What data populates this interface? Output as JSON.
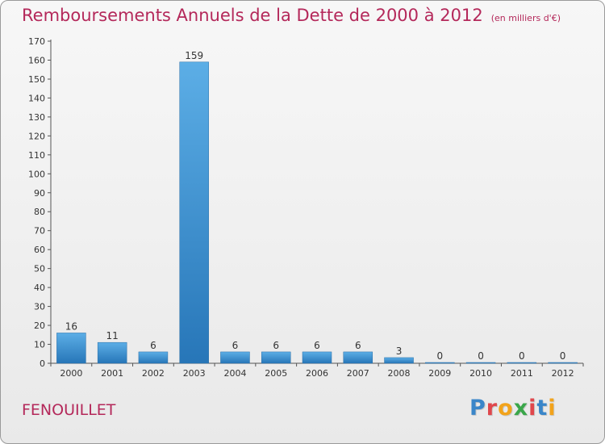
{
  "title": {
    "main": "Remboursements Annuels de la Dette de 2000 à 2012",
    "unit": "(en milliers d'€)"
  },
  "commune": "FENOUILLET",
  "logo": {
    "name": "Proxiti",
    "letters": [
      "P",
      "r",
      "o",
      "x",
      "i",
      "t",
      "i"
    ],
    "colors": [
      "#3a86c9",
      "#e0474c",
      "#f2a31b",
      "#3aa64a",
      "#e0474c",
      "#3a86c9",
      "#f2a31b"
    ]
  },
  "colors": {
    "bar_light": "#5caee6",
    "bar_dark": "#2776b8",
    "title": "#b4285a"
  },
  "chart_data": {
    "type": "bar",
    "title": "Remboursements Annuels de la Dette de 2000 à 2012",
    "subtitle": "(en milliers d'€)",
    "categories": [
      "2000",
      "2001",
      "2002",
      "2003",
      "2004",
      "2005",
      "2006",
      "2007",
      "2008",
      "2009",
      "2010",
      "2011",
      "2012"
    ],
    "values": [
      16,
      11,
      6,
      159,
      6,
      6,
      6,
      6,
      3,
      0,
      0,
      0,
      0
    ],
    "data_labels": [
      "16",
      "11",
      "6",
      "159",
      "6",
      "6",
      "6",
      "6",
      "3",
      "0",
      "0",
      "0",
      "0"
    ],
    "ylim": [
      0,
      170
    ],
    "yticks": [
      0,
      10,
      20,
      30,
      40,
      50,
      60,
      70,
      80,
      90,
      100,
      110,
      120,
      130,
      140,
      150,
      160,
      170
    ],
    "grid": false,
    "legend": "none"
  }
}
